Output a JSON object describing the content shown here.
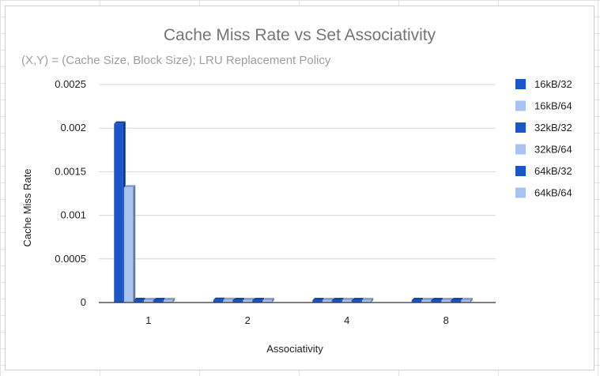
{
  "chart_data": {
    "type": "bar",
    "title": "Cache Miss Rate vs Set Associativity",
    "subtitle": "(X,Y) = (Cache Size, Block Size); LRU Replacement Policy",
    "xlabel": "Associativity",
    "ylabel": "Cache Miss Rate",
    "categories": [
      "1",
      "2",
      "4",
      "8"
    ],
    "ylim": [
      0,
      0.0025
    ],
    "yticks": [
      "0",
      "0.0005",
      "0.001",
      "0.0015",
      "0.002",
      "0.0025"
    ],
    "grid": true,
    "legend_position": "right",
    "series": [
      {
        "name": "16kB/32",
        "color": "#1a56c9",
        "values": [
          0.00205,
          3e-05,
          1e-05,
          1e-05
        ]
      },
      {
        "name": "16kB/64",
        "color": "#a8c3ef",
        "values": [
          0.00132,
          3e-05,
          1e-05,
          1e-05
        ]
      },
      {
        "name": "32kB/32",
        "color": "#1a56c9",
        "values": [
          1e-05,
          1e-05,
          1e-05,
          1e-05
        ]
      },
      {
        "name": "32kB/64",
        "color": "#a8c3ef",
        "values": [
          1e-05,
          1e-05,
          1e-05,
          1e-05
        ]
      },
      {
        "name": "64kB/32",
        "color": "#1a56c9",
        "values": [
          1e-05,
          1e-05,
          1e-05,
          1e-05
        ]
      },
      {
        "name": "64kB/64",
        "color": "#a8c3ef",
        "values": [
          1e-05,
          1e-05,
          1e-05,
          1e-05
        ]
      }
    ]
  }
}
